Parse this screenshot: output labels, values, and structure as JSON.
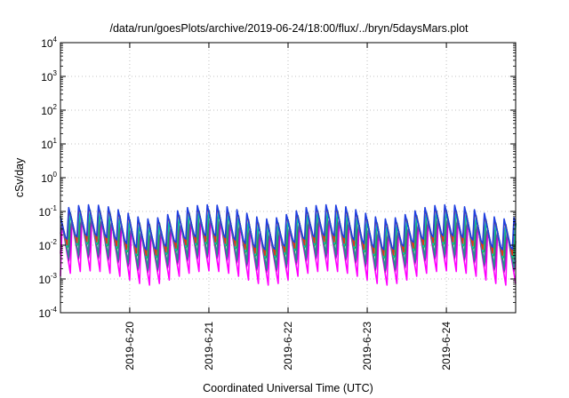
{
  "chart_data": {
    "type": "line",
    "title": "/data/run/goesPlots/archive/2019-06-24/18:00/flux/../bryn/5daysMars.plot",
    "xlabel": "Coordinated Universal Time (UTC)",
    "ylabel": "cSv/day",
    "y_scale": "log",
    "ylim": [
      0.0001,
      10000
    ],
    "y_ticks": [
      {
        "base": "10",
        "exp": "-4",
        "value": 0.0001
      },
      {
        "base": "10",
        "exp": "-3",
        "value": 0.001
      },
      {
        "base": "10",
        "exp": "-2",
        "value": 0.01
      },
      {
        "base": "10",
        "exp": "-1",
        "value": 0.1
      },
      {
        "base": "10",
        "exp": "0",
        "value": 1
      },
      {
        "base": "10",
        "exp": "1",
        "value": 10
      },
      {
        "base": "10",
        "exp": "2",
        "value": 100
      },
      {
        "base": "10",
        "exp": "3",
        "value": 1000
      },
      {
        "base": "10",
        "exp": "4",
        "value": 10000
      }
    ],
    "xlim": [
      "2019-06-19 03:00",
      "2019-06-24 21:00"
    ],
    "x_ticks": [
      "2019-6-20",
      "2019-6-21",
      "2019-6-22",
      "2019-6-23",
      "2019-6-24"
    ],
    "x_tick_dates": [
      "2019-06-20",
      "2019-06-21",
      "2019-06-22",
      "2019-06-23",
      "2019-06-24"
    ],
    "grid": true,
    "legend": "none",
    "sample_interval_hours": 1.5,
    "orbit_cycle_hours": 3,
    "series": [
      {
        "color": "#ff00ff",
        "cycle_min": 0.0012,
        "cycle_max": 0.045
      },
      {
        "color": "#d400d4",
        "cycle_min": 0.0018,
        "cycle_max": 0.055
      },
      {
        "color": "#6a3db8",
        "cycle_min": 0.0025,
        "cycle_max": 0.065
      },
      {
        "color": "#2a8c8c",
        "cycle_min": 0.0035,
        "cycle_max": 0.075
      },
      {
        "color": "#1fa84a",
        "cycle_min": 0.0045,
        "cycle_max": 0.085
      },
      {
        "color": "#00bfbf",
        "cycle_min": 0.006,
        "cycle_max": 0.095
      },
      {
        "color": "#e0301e",
        "cycle_min": 0.008,
        "cycle_max": 0.11
      },
      {
        "color": "#1f3fe0",
        "cycle_min": 0.01,
        "cycle_max": 0.12
      }
    ]
  }
}
